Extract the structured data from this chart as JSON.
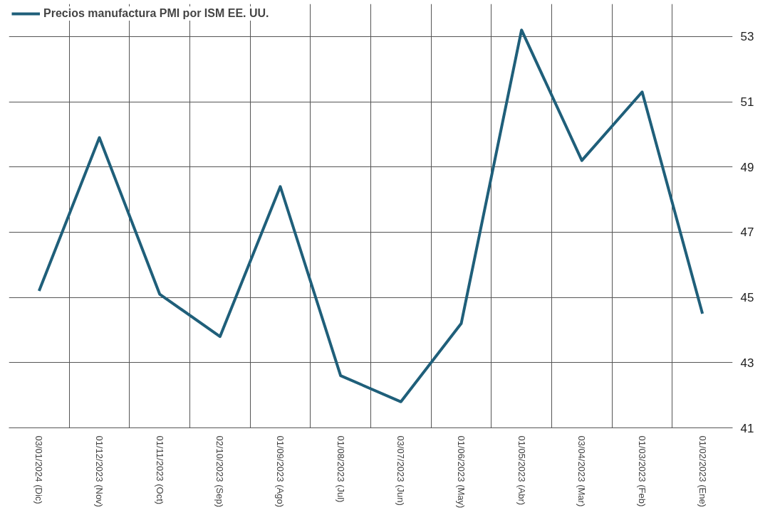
{
  "chart_data": {
    "type": "line",
    "categories": [
      "03/01/2024 (Dic)",
      "01/12/2023 (Nov)",
      "01/11/2023 (Oct)",
      "02/10/2023 (Sep)",
      "01/09/2023 (Ago)",
      "01/08/2023 (Jul)",
      "03/07/2023 (Jun)",
      "01/06/2023 (May)",
      "01/05/2023 (Abr)",
      "03/04/2023 (Mar)",
      "01/03/2023 (Feb)",
      "01/02/2023 (Ene)"
    ],
    "series": [
      {
        "name": "Precios manufactura PMI por ISM EE. UU.",
        "color": "#1f5f7a",
        "values": [
          45.2,
          49.9,
          45.1,
          43.8,
          48.4,
          42.6,
          41.8,
          44.2,
          53.2,
          49.2,
          51.3,
          44.5
        ]
      }
    ],
    "ylim": [
      41,
      54
    ],
    "yticks": [
      41,
      43,
      45,
      47,
      49,
      51,
      53
    ],
    "grid": true,
    "legend": "top left",
    "marker": "none",
    "line_style": "solid"
  }
}
